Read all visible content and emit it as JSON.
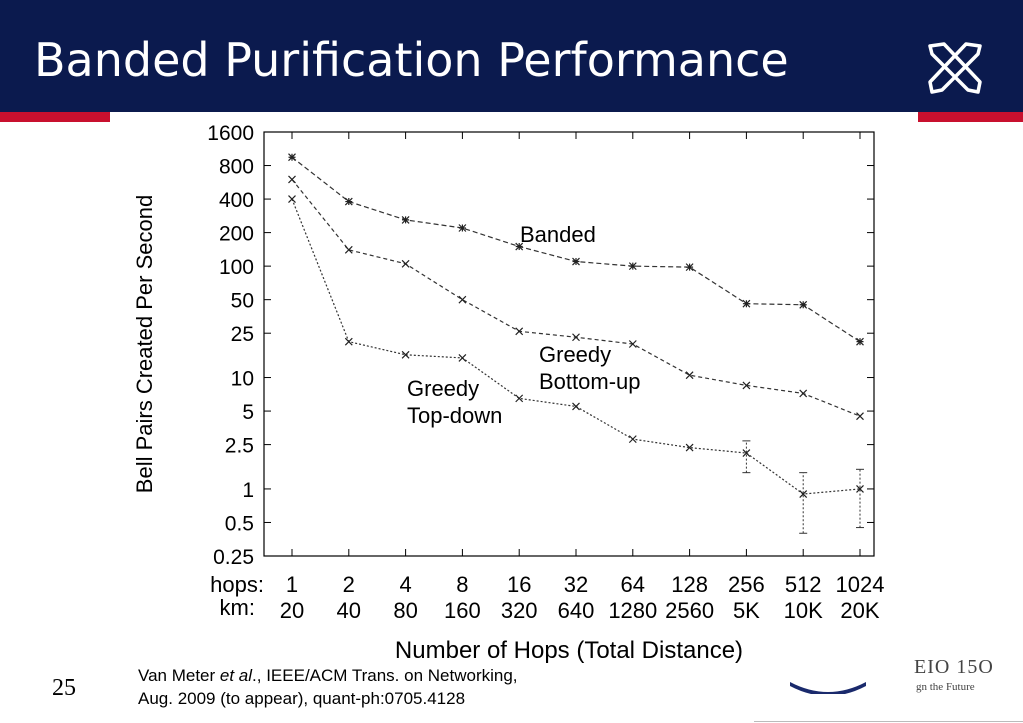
{
  "slide": {
    "title": "Banded Purification Performance",
    "slide_number": "25",
    "citation": {
      "author": "Van Meter ",
      "etal": "et al",
      "rest1": "., IEEE/ACM Trans. on Networking,",
      "line2": "Aug. 2009 (to appear), quant-ph:0705.4128"
    },
    "footer_logo_text": "EIO 15O",
    "footer_logo_subtext": "gn the Future",
    "colors": {
      "header": "#0b1a4e",
      "accent_red": "#c8102e",
      "title_text": "#ffffff"
    },
    "icons": [
      "crossed-pens-logo-icon",
      "university-crest-icon"
    ]
  },
  "chart_data": {
    "type": "line",
    "xlabel": "Number of Hops (Total Distance)",
    "ylabel": "Bell Pairs Created Per Second",
    "x_scale": "log2",
    "y_scale": "log",
    "ylim": [
      0.25,
      1600
    ],
    "y_ticks": [
      0.25,
      0.5,
      1,
      2.5,
      5,
      10,
      25,
      50,
      100,
      200,
      400,
      800,
      1600
    ],
    "y_tick_labels": [
      "0.25",
      "0.5",
      "1",
      "2.5",
      "5",
      "10",
      "25",
      "50",
      "100",
      "200",
      "400",
      "800",
      "1600"
    ],
    "x_row_prefixes": [
      "hops:",
      "km:"
    ],
    "hops": [
      1,
      2,
      4,
      8,
      16,
      32,
      64,
      128,
      256,
      512,
      1024
    ],
    "hops_labels": [
      "1",
      "2",
      "4",
      "8",
      "16",
      "32",
      "64",
      "128",
      "256",
      "512",
      "1024"
    ],
    "km_labels": [
      "20",
      "40",
      "80",
      "160",
      "320",
      "640",
      "1280",
      "2560",
      "5K",
      "10K",
      "20K"
    ],
    "grid": false,
    "series": [
      {
        "name": "Banded",
        "label": "Banded",
        "marker": "star",
        "dash": "5,3",
        "values": [
          950,
          380,
          260,
          220,
          150,
          110,
          100,
          98,
          46,
          45,
          21
        ],
        "errors": [
          0,
          0,
          0,
          0,
          0,
          0,
          0,
          0,
          0,
          0,
          0
        ]
      },
      {
        "name": "Greedy Bottom-up",
        "label": [
          "Greedy",
          "Bottom-up"
        ],
        "marker": "x",
        "dash": "4,3",
        "values": [
          600,
          140,
          105,
          50,
          26,
          23,
          20,
          10.5,
          8.5,
          7.2,
          4.5
        ],
        "errors": [
          0,
          0,
          0,
          0,
          0,
          0,
          0,
          0,
          0,
          0,
          0
        ]
      },
      {
        "name": "Greedy Top-down",
        "label": [
          "Greedy",
          "Top-down"
        ],
        "marker": "x",
        "dash": "2,2",
        "values": [
          400,
          21,
          16,
          15,
          6.5,
          5.5,
          2.8,
          2.35,
          2.1,
          0.9,
          1.0
        ],
        "errors": [
          0,
          0,
          0,
          0,
          0,
          0,
          0,
          0,
          [
            1.4,
            2.7
          ],
          [
            0.4,
            1.4
          ],
          [
            0.45,
            1.5
          ]
        ]
      }
    ]
  }
}
